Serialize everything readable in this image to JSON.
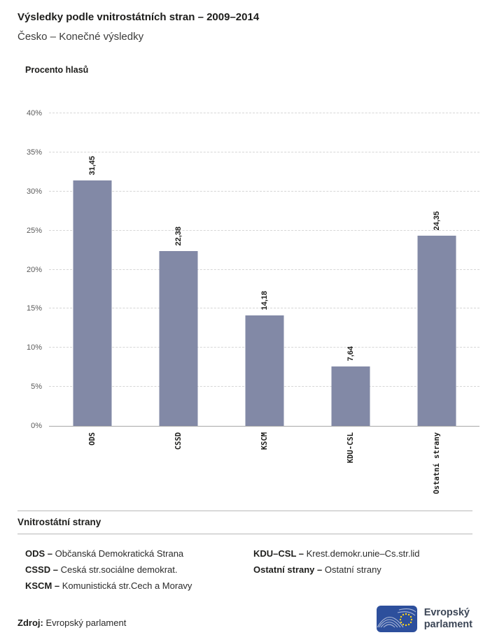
{
  "header": {
    "title": "Výsledky podle vnitrostátních stran – 2009–2014",
    "subtitle": "Česko – Konečné výsledky"
  },
  "chart_data": {
    "type": "bar",
    "title": "Výsledky podle vnitrostátních stran – 2009–2014",
    "subtitle": "Česko – Konečné výsledky",
    "ylabel": "Procento hlasů",
    "categories": [
      "ODS",
      "CSSD",
      "KSCM",
      "KDU-CSL",
      "Ostatní strany"
    ],
    "values": [
      31.45,
      22.38,
      14.18,
      7.64,
      24.35
    ],
    "value_labels": [
      "31,45",
      "22,38",
      "14,18",
      "7,64",
      "24,35"
    ],
    "ylim": [
      0,
      40
    ],
    "ytick_step": 5,
    "ytick_labels": [
      "0%",
      "5%",
      "10%",
      "15%",
      "20%",
      "25%",
      "30%",
      "35%",
      "40%"
    ],
    "grid": "dashed horizontal gridlines",
    "legend_position": "below",
    "bar_color": "#8289a6"
  },
  "legend": {
    "heading": "Vnitrostátní strany",
    "entries": [
      {
        "abbr": "ODS –",
        "name": "Občanská Demokratická Strana"
      },
      {
        "abbr": "CSSD –",
        "name": "Ceská str.sociálne demokrat."
      },
      {
        "abbr": "KSCM –",
        "name": "Komunistická str.Cech a Moravy"
      },
      {
        "abbr": "KDU–CSL –",
        "name": "Krest.demokr.unie–Cs.str.lid"
      },
      {
        "abbr": "Ostatní strany –",
        "name": "Ostatní strany"
      }
    ]
  },
  "footer": {
    "source_label": "Zdroj:",
    "source": "Evropský parlament",
    "logo_line1": "Evropský",
    "logo_line2": "parlament"
  }
}
